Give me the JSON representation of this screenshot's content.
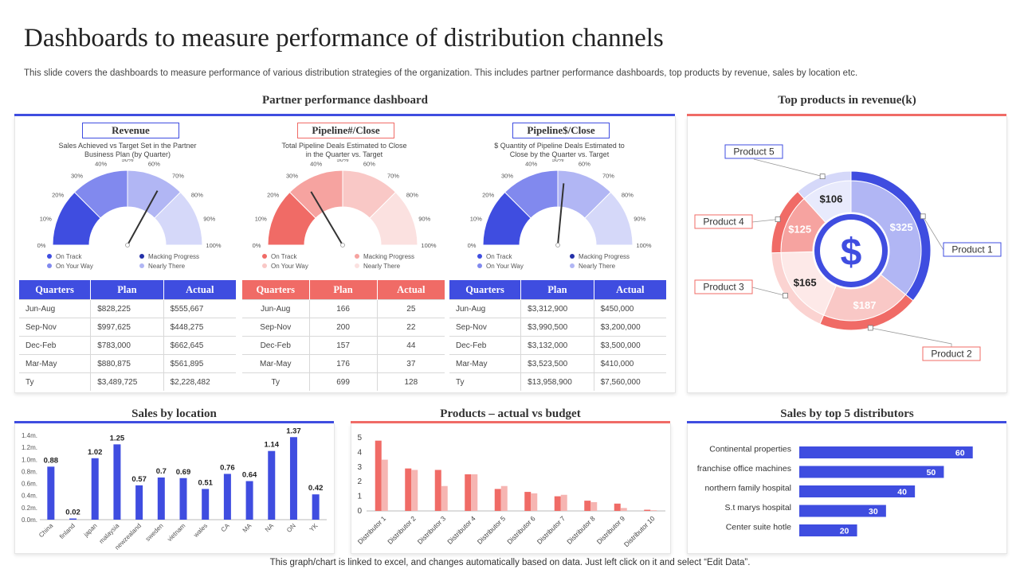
{
  "title": "Dashboards to measure performance of distribution channels",
  "subtitle": "This slide covers the dashboards to measure performance of various distribution strategies of the organization. This includes partner performance dashboards, top products by revenue, sales by location etc.",
  "footer": "This graph/chart is linked to excel, and changes automatically based on data. Just left click on it and select “Edit Data”.",
  "colors": {
    "blue": "#3f4de0",
    "red": "#f06b66"
  },
  "partner": {
    "title": "Partner performance dashboard",
    "gauge_ticks": [
      "0%",
      "10%",
      "20%",
      "30%",
      "40%",
      "50%",
      "60%",
      "70%",
      "80%",
      "90%",
      "100%"
    ],
    "gauges": [
      {
        "label": "Revenue",
        "desc_line1": "Sales Achieved vs Target Set in the Partner",
        "desc_line2": "Business Plan (by Quarter)",
        "theme": "blue",
        "needle_percent": 66,
        "legend": [
          "On Track",
          "Macking Progress",
          "On Your Way",
          "Nearly There"
        ],
        "table": {
          "headers": [
            "Quarters",
            "Plan",
            "Actual"
          ],
          "rows": [
            [
              "Jun-Aug",
              "$828,225",
              "$555,667"
            ],
            [
              "Sep-Nov",
              "$997,625",
              "$448,275"
            ],
            [
              "Dec-Feb",
              "$783,000",
              "$662,645"
            ],
            [
              "Mar-May",
              "$880,875",
              "$561,895"
            ],
            [
              "Ty",
              "$3,489,725",
              "$2,228,482"
            ]
          ]
        }
      },
      {
        "label": "Pipeline#/Close",
        "desc_line1": "Total Pipeline Deals Estimated to Close",
        "desc_line2": "in the Quarter vs. Target",
        "theme": "red",
        "needle_percent": 33,
        "legend": [
          "On Track",
          "Macking Progress",
          "On Your Way",
          "Nearly There"
        ],
        "table": {
          "headers": [
            "Quarters",
            "Plan",
            "Actual"
          ],
          "rows": [
            [
              "Jun-Aug",
              "166",
              "25"
            ],
            [
              "Sep-Nov",
              "200",
              "22"
            ],
            [
              "Dec-Feb",
              "157",
              "44"
            ],
            [
              "Mar-May",
              "176",
              "37"
            ],
            [
              "Ty",
              "699",
              "128"
            ]
          ]
        }
      },
      {
        "label": "Pipeline$/Close",
        "desc_line1": "$ Quantity of Pipeline Deals Estimated to",
        "desc_line2": "Close by the Quarter vs. Target",
        "theme": "blue",
        "needle_percent": 53,
        "legend": [
          "On Track",
          "Macking Progress",
          "On Your Way",
          "Nearly There"
        ],
        "table": {
          "headers": [
            "Quarters",
            "Plan",
            "Actual"
          ],
          "rows": [
            [
              "Jun-Aug",
              "$3,312,900",
              "$450,000"
            ],
            [
              "Sep-Nov",
              "$3,990,500",
              "$3,200,000"
            ],
            [
              "Dec-Feb",
              "$3,132,000",
              "$3,500,000"
            ],
            [
              "Mar-May",
              "$3,523,500",
              "$410,000"
            ],
            [
              "Ty",
              "$13,958,900",
              "$7,560,000"
            ]
          ]
        }
      }
    ]
  },
  "top_products": {
    "title": "Top products  in revenue(k)",
    "center_icon": "dollar-icon",
    "center_symbol": "$"
  },
  "location": {
    "title": "Sales by location"
  },
  "products_budget": {
    "title": "Products  – actual vs budget"
  },
  "distributors": {
    "title": "Sales by top 5 distributors"
  },
  "chart_data": [
    {
      "id": "top-products",
      "type": "pie",
      "title": "Top products  in revenue(k)",
      "categories": [
        "Product 1",
        "Product 2",
        "Product 3",
        "Product 4",
        "Product 5"
      ],
      "values": [
        325,
        187,
        165,
        125,
        106
      ],
      "labels": [
        "$325",
        "$187",
        "$165",
        "$125",
        "$106"
      ]
    },
    {
      "id": "sales-location",
      "type": "bar",
      "title": "Sales by location",
      "categories": [
        "China",
        "finland",
        "japan",
        "malaysia",
        "newzealand",
        "sweden",
        "vietnam",
        "wales",
        "CA",
        "MA",
        "NA",
        "ON",
        "YK"
      ],
      "values": [
        0.88,
        0.02,
        1.02,
        1.25,
        0.57,
        0.7,
        0.69,
        0.51,
        0.76,
        0.64,
        1.14,
        1.37,
        0.42
      ],
      "yticks": [
        "0.0m.",
        "0.2m.",
        "0.4m.",
        "0.6m.",
        "0.8m.",
        "1.0m.",
        "1.2m.",
        "1.4m."
      ],
      "ylim": [
        0,
        1.4
      ]
    },
    {
      "id": "products-budget",
      "type": "bar",
      "title": "Products  – actual vs budget",
      "categories": [
        "Distributor 1",
        "Distributor 2",
        "Distributor 3",
        "Distributor 4",
        "Distributor 5",
        "Distributor 6",
        "Distributor 7",
        "Distributor 8",
        "Distributor 9",
        "Distributor 10"
      ],
      "series": [
        {
          "name": "Actual",
          "values": [
            4.8,
            2.9,
            2.8,
            2.5,
            1.5,
            1.3,
            1.0,
            0.7,
            0.5,
            0.08
          ]
        },
        {
          "name": "Budget",
          "values": [
            3.5,
            2.8,
            1.7,
            2.5,
            1.7,
            1.2,
            1.1,
            0.6,
            0.2,
            0.05
          ]
        }
      ],
      "yticks": [
        "0",
        "1",
        "2",
        "3",
        "4",
        "5"
      ],
      "ylim": [
        0,
        5
      ]
    },
    {
      "id": "top-distributors",
      "type": "bar",
      "orientation": "horizontal",
      "title": "Sales by top 5 distributors",
      "categories": [
        "Continental properties",
        "franchise office machines",
        "northern family hospital",
        "S.t marys hospital",
        "Center suite hotle"
      ],
      "values": [
        60,
        50,
        40,
        30,
        20
      ],
      "xlim": [
        0,
        70
      ]
    }
  ]
}
